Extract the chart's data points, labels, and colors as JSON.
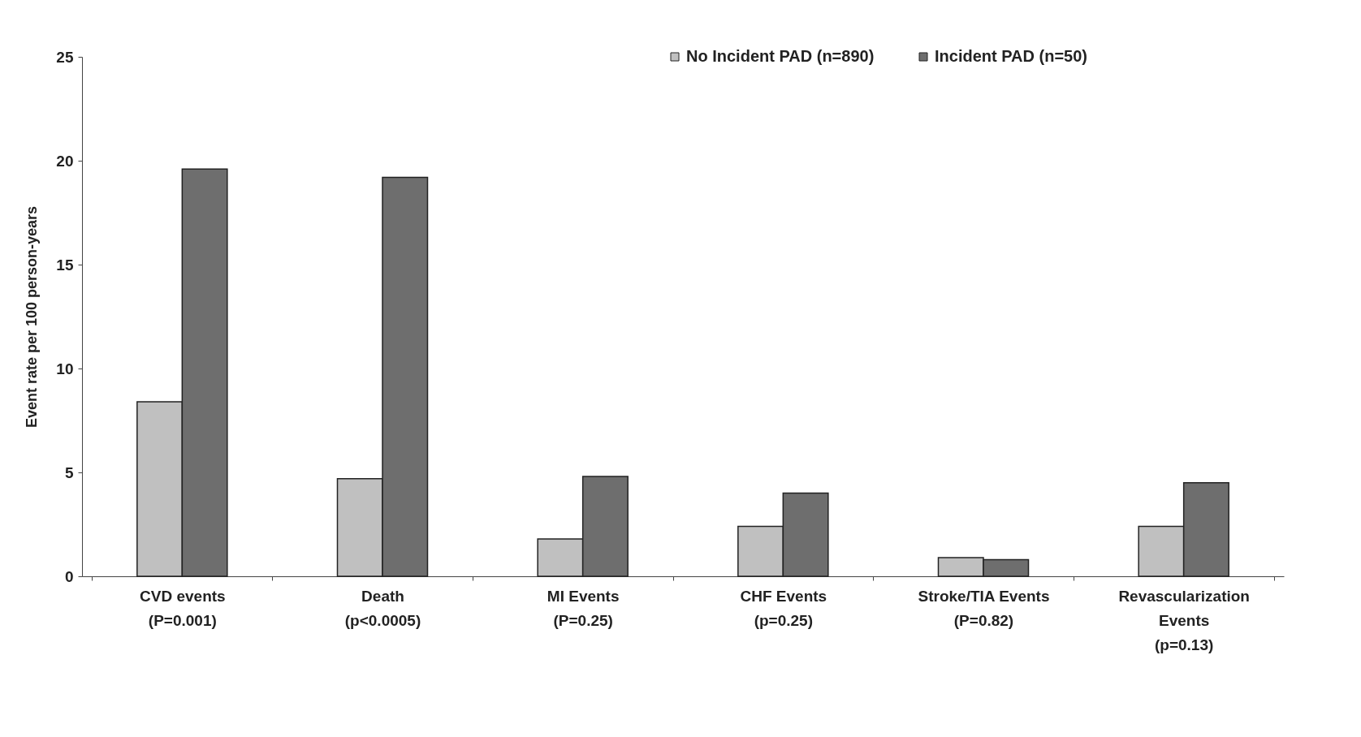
{
  "chart_data": {
    "type": "bar",
    "ylabel": "Event rate per 100 person-years",
    "categories": [
      "CVD events\n(P=0.001)",
      "Death\n(p<0.0005)",
      "MI Events\n(P=0.25)",
      "CHF Events\n(p=0.25)",
      "Stroke/TIA Events\n(P=0.82)",
      "Revascularization\nEvents\n(p=0.13)"
    ],
    "series": [
      {
        "name": "No Incident PAD (n=890)",
        "color": "#c0c0c0",
        "values": [
          8.4,
          4.7,
          1.8,
          2.4,
          0.9,
          2.4
        ]
      },
      {
        "name": "Incident PAD (n=50)",
        "color": "#6e6e6e",
        "values": [
          19.6,
          19.2,
          4.8,
          4.0,
          0.8,
          4.5
        ]
      }
    ],
    "ylim": [
      0,
      25
    ],
    "yticks": [
      0,
      5,
      10,
      15,
      20,
      25
    ],
    "grid": false,
    "legend": "top right"
  }
}
